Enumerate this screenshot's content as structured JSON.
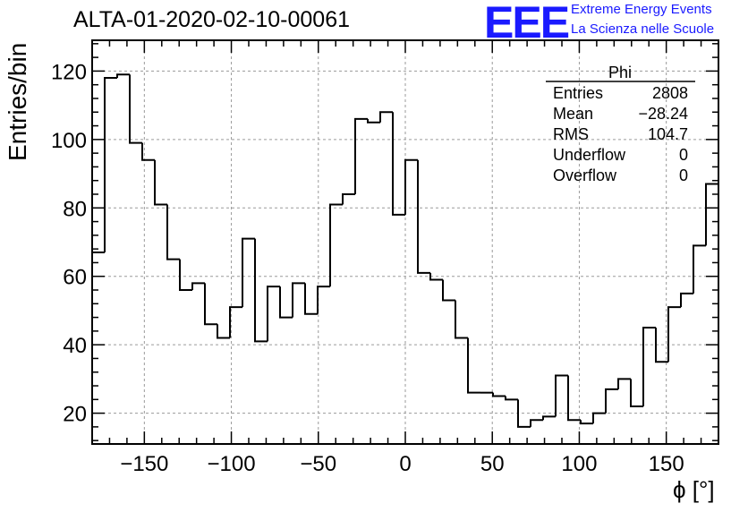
{
  "header": {
    "title": "ALTA-01-2020-02-10-00061",
    "logo_text": "EEE",
    "logo_line1": "Extreme Energy Events",
    "logo_line2": "La Scienza nelle Scuole"
  },
  "colors": {
    "logo": "#1a1aff",
    "line": "#000000",
    "grid": "#9a9a9a"
  },
  "stats": {
    "name": "Phi",
    "rows": [
      {
        "label": "Entries",
        "value": "2808"
      },
      {
        "label": "Mean",
        "value": "−28.24"
      },
      {
        "label": "RMS",
        "value": "104.7"
      },
      {
        "label": "Underflow",
        "value": "0"
      },
      {
        "label": "Overflow",
        "value": "0"
      }
    ]
  },
  "chart_data": {
    "type": "histogram",
    "xlabel": "ϕ [°]",
    "ylabel": "Entries/bin",
    "xlim": [
      -180,
      180
    ],
    "ylim": [
      11,
      129
    ],
    "bin_width": 7.2,
    "xticks": [
      -150,
      -100,
      -50,
      0,
      50,
      100,
      150
    ],
    "xtick_labels": [
      "−150",
      "−100",
      "−50",
      "0",
      "50",
      "100",
      "150"
    ],
    "yticks": [
      20,
      40,
      60,
      80,
      100,
      120
    ],
    "grid": true,
    "values": [
      67,
      118,
      119,
      99,
      94,
      81,
      65,
      56,
      58,
      46,
      42,
      51,
      71,
      41,
      57,
      48,
      58,
      49,
      57,
      81,
      84,
      106,
      105,
      108,
      78,
      94,
      61,
      59,
      53,
      42,
      26,
      26,
      25,
      24,
      16,
      18,
      19,
      31,
      18,
      17,
      20,
      27,
      30,
      22,
      45,
      35,
      51,
      55,
      69,
      87
    ]
  }
}
